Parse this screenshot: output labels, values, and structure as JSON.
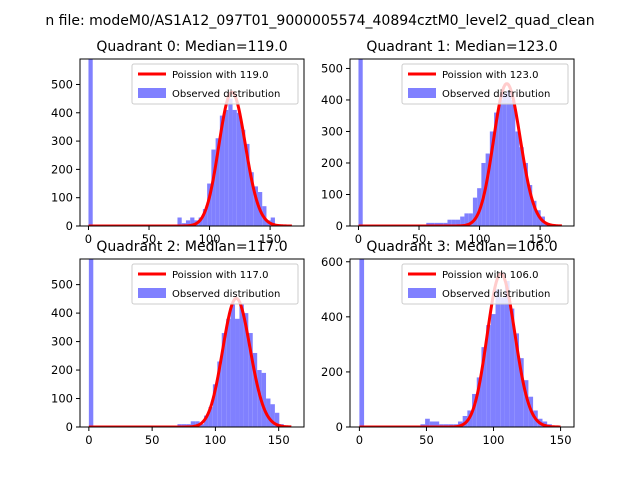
{
  "figure": {
    "suptitle": "n file: modeM0/AS1A12_097T01_9000005574_40894cztM0_level2_quad_clean"
  },
  "colors": {
    "histogram": "#8080ff",
    "poisson_line": "#ff0000",
    "axis": "#000000",
    "background": "#ffffff"
  },
  "legend": {
    "observed_label": "Observed distribution",
    "poisson_prefix": "Poission with"
  },
  "chart_data": [
    {
      "type": "bar",
      "title": "Quadrant 0: Median=119.0",
      "median": 119.0,
      "poisson_label": "Poission with 119.0",
      "observed_label": "Observed distribution",
      "legend_position": "top-right",
      "xlim": [
        -7,
        178
      ],
      "ylim": [
        0,
        590
      ],
      "xticks": [
        0,
        50,
        100,
        150
      ],
      "xtick_labels": [
        "0",
        "50",
        "100",
        "150"
      ],
      "yticks": [
        0,
        100,
        200,
        300,
        400,
        500
      ],
      "ytick_labels": [
        "0",
        "100",
        "200",
        "300",
        "400",
        "500"
      ],
      "x_axis_visible": true,
      "bins": [
        {
          "x0": 0,
          "x1": 3.5,
          "v": 590
        },
        {
          "x0": 73.5,
          "x1": 77,
          "v": 30
        },
        {
          "x0": 77,
          "x1": 80.5,
          "v": 10
        },
        {
          "x0": 80.5,
          "x1": 84,
          "v": 20
        },
        {
          "x0": 84,
          "x1": 87.5,
          "v": 30
        },
        {
          "x0": 87.5,
          "x1": 91,
          "v": 20
        },
        {
          "x0": 91,
          "x1": 94.5,
          "v": 30
        },
        {
          "x0": 94.5,
          "x1": 98,
          "v": 60
        },
        {
          "x0": 98,
          "x1": 101.5,
          "v": 150
        },
        {
          "x0": 101.5,
          "x1": 105,
          "v": 270
        },
        {
          "x0": 105,
          "x1": 108.5,
          "v": 310
        },
        {
          "x0": 108.5,
          "x1": 112,
          "v": 390
        },
        {
          "x0": 112,
          "x1": 115.5,
          "v": 410
        },
        {
          "x0": 115.5,
          "x1": 119,
          "v": 450
        },
        {
          "x0": 119,
          "x1": 122.5,
          "v": 410
        },
        {
          "x0": 122.5,
          "x1": 126,
          "v": 400
        },
        {
          "x0": 126,
          "x1": 129.5,
          "v": 340
        },
        {
          "x0": 129.5,
          "x1": 133,
          "v": 290
        },
        {
          "x0": 133,
          "x1": 136.5,
          "v": 190
        },
        {
          "x0": 136.5,
          "x1": 140,
          "v": 140
        },
        {
          "x0": 140,
          "x1": 143.5,
          "v": 120
        },
        {
          "x0": 143.5,
          "x1": 147,
          "v": 70
        },
        {
          "x0": 147,
          "x1": 150.5,
          "v": 20
        },
        {
          "x0": 150.5,
          "x1": 154,
          "v": 30
        }
      ]
    },
    {
      "type": "bar",
      "title": "Quadrant 1: Median=123.0",
      "median": 123.0,
      "poisson_label": "Poission with 123.0",
      "observed_label": "Observed distribution",
      "legend_position": "top-right",
      "xlim": [
        -7,
        178
      ],
      "ylim": [
        0,
        530
      ],
      "xticks": [
        0,
        50,
        100,
        150
      ],
      "xtick_labels": [
        "0",
        "50",
        "100",
        "150"
      ],
      "yticks": [
        0,
        100,
        200,
        300,
        400,
        500
      ],
      "ytick_labels": [
        "0",
        "100",
        "200",
        "300",
        "400",
        "500"
      ],
      "x_axis_visible": true,
      "bins": [
        {
          "x0": 0,
          "x1": 3.5,
          "v": 530
        },
        {
          "x0": 56,
          "x1": 59.5,
          "v": 10
        },
        {
          "x0": 59.5,
          "x1": 63,
          "v": 10
        },
        {
          "x0": 63,
          "x1": 66.5,
          "v": 10
        },
        {
          "x0": 66.5,
          "x1": 70,
          "v": 10
        },
        {
          "x0": 70,
          "x1": 73.5,
          "v": 10
        },
        {
          "x0": 73.5,
          "x1": 77,
          "v": 20
        },
        {
          "x0": 77,
          "x1": 80.5,
          "v": 20
        },
        {
          "x0": 80.5,
          "x1": 84,
          "v": 20
        },
        {
          "x0": 84,
          "x1": 87.5,
          "v": 30
        },
        {
          "x0": 87.5,
          "x1": 91,
          "v": 40
        },
        {
          "x0": 91,
          "x1": 94.5,
          "v": 40
        },
        {
          "x0": 94.5,
          "x1": 98,
          "v": 90
        },
        {
          "x0": 98,
          "x1": 101.5,
          "v": 120
        },
        {
          "x0": 101.5,
          "x1": 105,
          "v": 200
        },
        {
          "x0": 105,
          "x1": 108.5,
          "v": 230
        },
        {
          "x0": 108.5,
          "x1": 112,
          "v": 300
        },
        {
          "x0": 112,
          "x1": 115.5,
          "v": 360
        },
        {
          "x0": 115.5,
          "x1": 119,
          "v": 400
        },
        {
          "x0": 119,
          "x1": 122.5,
          "v": 420
        },
        {
          "x0": 122.5,
          "x1": 126,
          "v": 430
        },
        {
          "x0": 126,
          "x1": 129.5,
          "v": 400
        },
        {
          "x0": 129.5,
          "x1": 133,
          "v": 300
        },
        {
          "x0": 133,
          "x1": 136.5,
          "v": 250
        },
        {
          "x0": 136.5,
          "x1": 140,
          "v": 200
        },
        {
          "x0": 140,
          "x1": 143.5,
          "v": 130
        },
        {
          "x0": 143.5,
          "x1": 147,
          "v": 80
        },
        {
          "x0": 147,
          "x1": 150.5,
          "v": 50
        },
        {
          "x0": 150.5,
          "x1": 154,
          "v": 30
        },
        {
          "x0": 154,
          "x1": 157.5,
          "v": 10
        }
      ]
    },
    {
      "type": "bar",
      "title": "Quadrant 2: Median=117.0",
      "median": 117.0,
      "poisson_label": "Poission with 117.0",
      "observed_label": "Observed distribution",
      "legend_position": "top-right",
      "xlim": [
        -7,
        170
      ],
      "ylim": [
        0,
        590
      ],
      "xticks": [
        0,
        50,
        100,
        150
      ],
      "xtick_labels": [
        "0",
        "50",
        "100",
        "150"
      ],
      "yticks": [
        0,
        100,
        200,
        300,
        400,
        500
      ],
      "ytick_labels": [
        "0",
        "100",
        "200",
        "300",
        "400",
        "500"
      ],
      "x_axis_visible": true,
      "bins": [
        {
          "x0": 0,
          "x1": 3.5,
          "v": 590
        },
        {
          "x0": 70,
          "x1": 73.5,
          "v": 10
        },
        {
          "x0": 73.5,
          "x1": 77,
          "v": 10
        },
        {
          "x0": 77,
          "x1": 80.5,
          "v": 10
        },
        {
          "x0": 80.5,
          "x1": 84,
          "v": 20
        },
        {
          "x0": 84,
          "x1": 87.5,
          "v": 20
        },
        {
          "x0": 87.5,
          "x1": 91,
          "v": 10
        },
        {
          "x0": 91,
          "x1": 94.5,
          "v": 40
        },
        {
          "x0": 94.5,
          "x1": 98,
          "v": 70
        },
        {
          "x0": 98,
          "x1": 101.5,
          "v": 150
        },
        {
          "x0": 101.5,
          "x1": 105,
          "v": 230
        },
        {
          "x0": 105,
          "x1": 108.5,
          "v": 330
        },
        {
          "x0": 108.5,
          "x1": 112,
          "v": 380
        },
        {
          "x0": 112,
          "x1": 115.5,
          "v": 430
        },
        {
          "x0": 115.5,
          "x1": 119,
          "v": 380
        },
        {
          "x0": 119,
          "x1": 122.5,
          "v": 430
        },
        {
          "x0": 122.5,
          "x1": 126,
          "v": 400
        },
        {
          "x0": 126,
          "x1": 129.5,
          "v": 330
        },
        {
          "x0": 129.5,
          "x1": 133,
          "v": 260
        },
        {
          "x0": 133,
          "x1": 136.5,
          "v": 200
        },
        {
          "x0": 136.5,
          "x1": 140,
          "v": 190
        },
        {
          "x0": 140,
          "x1": 143.5,
          "v": 100
        },
        {
          "x0": 143.5,
          "x1": 147,
          "v": 80
        },
        {
          "x0": 147,
          "x1": 150.5,
          "v": 50
        },
        {
          "x0": 150.5,
          "x1": 154,
          "v": 10
        }
      ]
    },
    {
      "type": "bar",
      "title": "Quadrant 3: Median=106.0",
      "median": 106.0,
      "poisson_label": "Poission with 106.0",
      "observed_label": "Observed distribution",
      "legend_position": "top-right",
      "xlim": [
        -7,
        160
      ],
      "ylim": [
        0,
        610
      ],
      "xticks": [
        0,
        50,
        100,
        150
      ],
      "xtick_labels": [
        "0",
        "50",
        "100",
        "150"
      ],
      "yticks": [
        0,
        200,
        400,
        600
      ],
      "ytick_labels": [
        "0",
        "200",
        "400",
        "600"
      ],
      "x_axis_visible": true,
      "bins": [
        {
          "x0": 0,
          "x1": 3.5,
          "v": 610
        },
        {
          "x0": 45.5,
          "x1": 49,
          "v": 10
        },
        {
          "x0": 49,
          "x1": 52.5,
          "v": 30
        },
        {
          "x0": 52.5,
          "x1": 56,
          "v": 20
        },
        {
          "x0": 56,
          "x1": 59.5,
          "v": 20
        },
        {
          "x0": 59.5,
          "x1": 63,
          "v": 10
        },
        {
          "x0": 63,
          "x1": 66.5,
          "v": 10
        },
        {
          "x0": 66.5,
          "x1": 70,
          "v": 10
        },
        {
          "x0": 70,
          "x1": 73.5,
          "v": 10
        },
        {
          "x0": 73.5,
          "x1": 77,
          "v": 20
        },
        {
          "x0": 77,
          "x1": 80.5,
          "v": 40
        },
        {
          "x0": 80.5,
          "x1": 84,
          "v": 60
        },
        {
          "x0": 84,
          "x1": 87.5,
          "v": 120
        },
        {
          "x0": 87.5,
          "x1": 91,
          "v": 180
        },
        {
          "x0": 91,
          "x1": 94.5,
          "v": 290
        },
        {
          "x0": 94.5,
          "x1": 98,
          "v": 370
        },
        {
          "x0": 98,
          "x1": 101.5,
          "v": 410
        },
        {
          "x0": 101.5,
          "x1": 105,
          "v": 500
        },
        {
          "x0": 105,
          "x1": 108.5,
          "v": 470
        },
        {
          "x0": 108.5,
          "x1": 112,
          "v": 530
        },
        {
          "x0": 112,
          "x1": 115.5,
          "v": 430
        },
        {
          "x0": 115.5,
          "x1": 119,
          "v": 340
        },
        {
          "x0": 119,
          "x1": 122.5,
          "v": 250
        },
        {
          "x0": 122.5,
          "x1": 126,
          "v": 170
        },
        {
          "x0": 126,
          "x1": 129.5,
          "v": 110
        },
        {
          "x0": 129.5,
          "x1": 133,
          "v": 60
        },
        {
          "x0": 133,
          "x1": 136.5,
          "v": 30
        },
        {
          "x0": 136.5,
          "x1": 140,
          "v": 20
        },
        {
          "x0": 140,
          "x1": 143.5,
          "v": 10
        }
      ]
    }
  ]
}
